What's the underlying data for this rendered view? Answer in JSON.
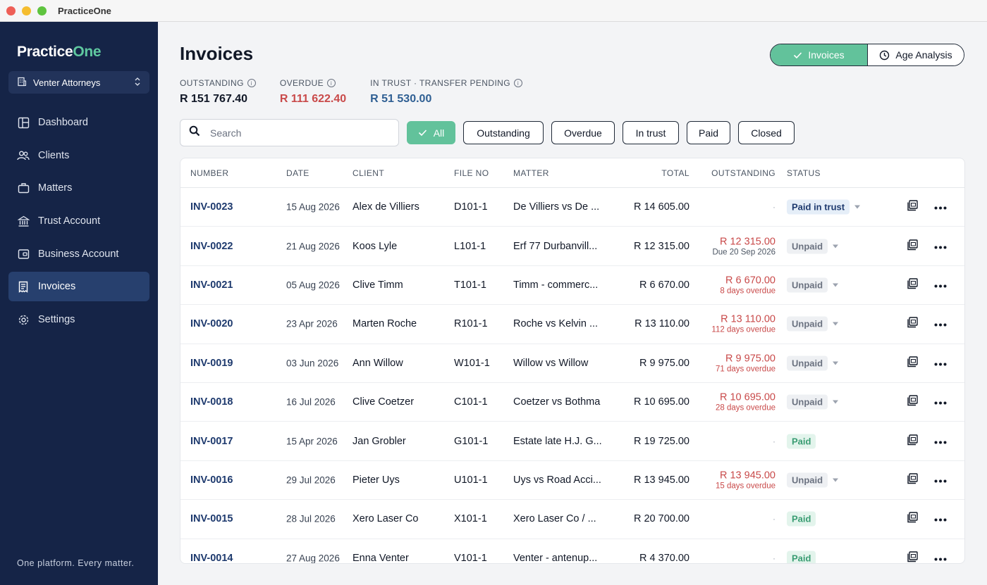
{
  "window": {
    "title": "PracticeOne"
  },
  "sidebar": {
    "logo_part1": "Practice",
    "logo_part2": "One",
    "org": "Venter Attorneys",
    "items": [
      {
        "label": "Dashboard",
        "icon": "dashboard-icon"
      },
      {
        "label": "Clients",
        "icon": "users-icon"
      },
      {
        "label": "Matters",
        "icon": "briefcase-icon"
      },
      {
        "label": "Trust Account",
        "icon": "bank-icon"
      },
      {
        "label": "Business Account",
        "icon": "wallet-icon"
      },
      {
        "label": "Invoices",
        "icon": "invoice-icon",
        "active": true
      },
      {
        "label": "Settings",
        "icon": "gear-icon"
      }
    ],
    "tagline": "One platform. Every matter."
  },
  "header": {
    "title": "Invoices",
    "toggle": {
      "invoices": "Invoices",
      "age_analysis": "Age Analysis"
    }
  },
  "stats": {
    "outstanding_label": "OUTSTANDING",
    "outstanding_value": "R 151 767.40",
    "overdue_label": "OVERDUE",
    "overdue_value": "R 111 622.40",
    "trust_label": "IN TRUST · TRANSFER PENDING",
    "trust_value": "R 51 530.00"
  },
  "search": {
    "placeholder": "Search",
    "value": ""
  },
  "filters": [
    "All",
    "Outstanding",
    "Overdue",
    "In trust",
    "Paid",
    "Closed"
  ],
  "table": {
    "headers": {
      "number": "NUMBER",
      "date": "DATE",
      "client": "CLIENT",
      "file": "FILE NO",
      "matter": "MATTER",
      "total": "TOTAL",
      "outstanding": "OUTSTANDING",
      "status": "STATUS"
    },
    "rows": [
      {
        "number": "INV-0023",
        "date": "15 Aug 2026",
        "client": "Alex de Villiers",
        "file": "D101-1",
        "matter": "De Villiers vs De ...",
        "total": "R 14 605.00",
        "outstanding": "·",
        "sub": "",
        "status": "Paid in trust"
      },
      {
        "number": "INV-0022",
        "date": "21 Aug 2026",
        "client": "Koos Lyle",
        "file": "L101-1",
        "matter": "Erf 77 Durbanvill...",
        "total": "R 12 315.00",
        "outstanding": "R 12 315.00",
        "sub": "Due 20 Sep 2026",
        "status": "Unpaid"
      },
      {
        "number": "INV-0021",
        "date": "05 Aug 2026",
        "client": "Clive Timm",
        "file": "T101-1",
        "matter": "Timm - commerc...",
        "total": "R 6 670.00",
        "outstanding": "R 6 670.00",
        "sub": "8 days overdue",
        "status": "Unpaid"
      },
      {
        "number": "INV-0020",
        "date": "23 Apr 2026",
        "client": "Marten Roche",
        "file": "R101-1",
        "matter": "Roche vs Kelvin ...",
        "total": "R 13 110.00",
        "outstanding": "R 13 110.00",
        "sub": "112 days overdue",
        "status": "Unpaid"
      },
      {
        "number": "INV-0019",
        "date": "03 Jun 2026",
        "client": "Ann Willow",
        "file": "W101-1",
        "matter": "Willow vs Willow",
        "total": "R 9 975.00",
        "outstanding": "R 9 975.00",
        "sub": "71 days overdue",
        "status": "Unpaid"
      },
      {
        "number": "INV-0018",
        "date": "16 Jul 2026",
        "client": "Clive Coetzer",
        "file": "C101-1",
        "matter": "Coetzer vs Bothma",
        "total": "R 10 695.00",
        "outstanding": "R 10 695.00",
        "sub": "28 days overdue",
        "status": "Unpaid"
      },
      {
        "number": "INV-0017",
        "date": "15 Apr 2026",
        "client": "Jan Grobler",
        "file": "G101-1",
        "matter": "Estate late H.J. G...",
        "total": "R 19 725.00",
        "outstanding": "·",
        "sub": "",
        "status": "Paid"
      },
      {
        "number": "INV-0016",
        "date": "29 Jul 2026",
        "client": "Pieter Uys",
        "file": "U101-1",
        "matter": "Uys vs Road Acci...",
        "total": "R 13 945.00",
        "outstanding": "R 13 945.00",
        "sub": "15 days overdue",
        "status": "Unpaid"
      },
      {
        "number": "INV-0015",
        "date": "28 Jul 2026",
        "client": "Xero Laser Co",
        "file": "X101-1",
        "matter": "Xero Laser Co / ...",
        "total": "R 20 700.00",
        "outstanding": "·",
        "sub": "",
        "status": "Paid"
      },
      {
        "number": "INV-0014",
        "date": "27 Aug 2026",
        "client": "Enna Venter",
        "file": "V101-1",
        "matter": "Venter - antenup...",
        "total": "R 4 370.00",
        "outstanding": "·",
        "sub": "",
        "status": "Paid"
      }
    ]
  },
  "colors": {
    "sidebar_bg": "#152447",
    "accent_green": "#62c29b",
    "overdue_red": "#c94a4a",
    "trust_blue": "#2f5f93"
  }
}
